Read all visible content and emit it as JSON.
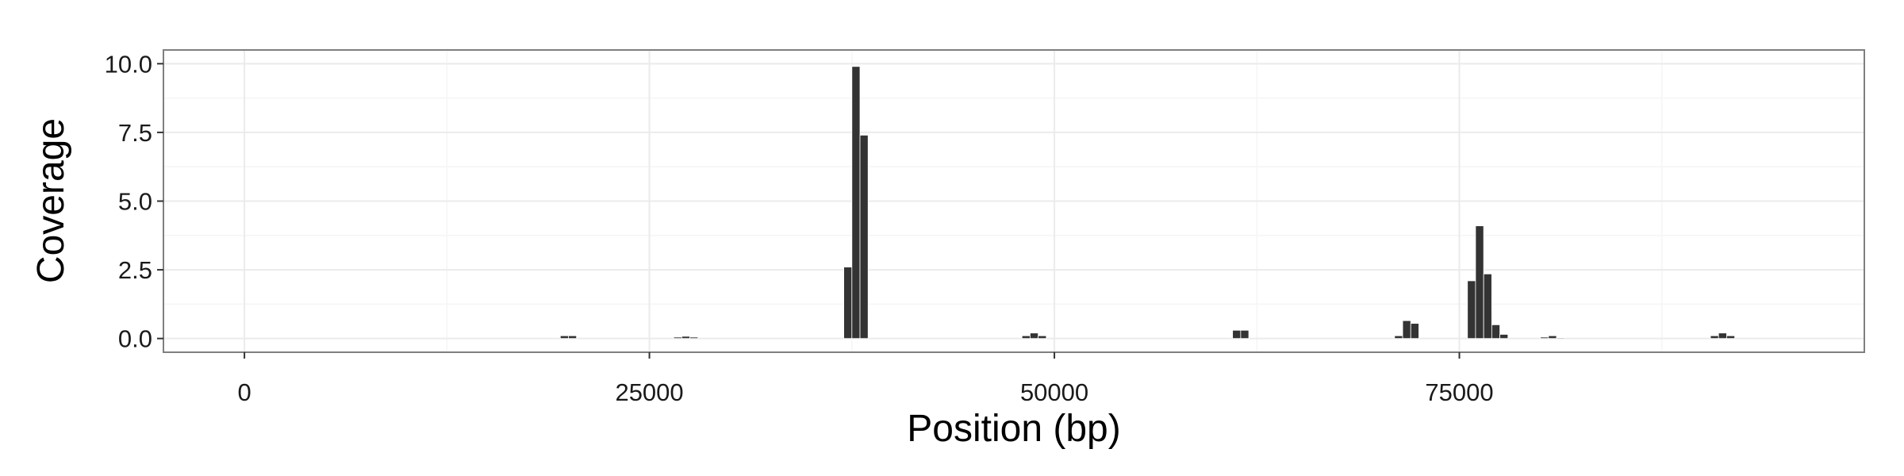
{
  "chart_data": {
    "type": "bar",
    "title": "",
    "xlabel": "Position (bp)",
    "ylabel": "Coverage",
    "xlim": [
      -5000,
      100000
    ],
    "ylim": [
      -0.5,
      10.5
    ],
    "x_ticks": [
      0,
      25000,
      50000,
      75000
    ],
    "x_tick_labels": [
      "0",
      "25000",
      "50000",
      "75000"
    ],
    "y_ticks": [
      0,
      2.5,
      5,
      7.5,
      10
    ],
    "y_tick_labels": [
      "0.0",
      "2.5",
      "5.0",
      "7.5",
      "10.0"
    ],
    "bin_width": 500,
    "grid": true,
    "legend": "none",
    "bar_color": "#333333",
    "panel_border_color": "#7f7f7f",
    "grid_color": "#ebebeb",
    "bars": [
      {
        "x": 19750,
        "y": 0.1
      },
      {
        "x": 20250,
        "y": 0.1
      },
      {
        "x": 26750,
        "y": 0.05
      },
      {
        "x": 27250,
        "y": 0.08
      },
      {
        "x": 27750,
        "y": 0.05
      },
      {
        "x": 37250,
        "y": 2.6
      },
      {
        "x": 37750,
        "y": 9.9
      },
      {
        "x": 38250,
        "y": 7.4
      },
      {
        "x": 48250,
        "y": 0.1
      },
      {
        "x": 48750,
        "y": 0.2
      },
      {
        "x": 49250,
        "y": 0.1
      },
      {
        "x": 61250,
        "y": 0.3
      },
      {
        "x": 61750,
        "y": 0.3
      },
      {
        "x": 71250,
        "y": 0.1
      },
      {
        "x": 71750,
        "y": 0.65
      },
      {
        "x": 72250,
        "y": 0.55
      },
      {
        "x": 75750,
        "y": 2.1
      },
      {
        "x": 76250,
        "y": 4.1
      },
      {
        "x": 76750,
        "y": 2.35
      },
      {
        "x": 77250,
        "y": 0.5
      },
      {
        "x": 77750,
        "y": 0.15
      },
      {
        "x": 80250,
        "y": 0.05
      },
      {
        "x": 80750,
        "y": 0.1
      },
      {
        "x": 81250,
        "y": 0.03
      },
      {
        "x": 90750,
        "y": 0.1
      },
      {
        "x": 91250,
        "y": 0.2
      },
      {
        "x": 91750,
        "y": 0.1
      }
    ]
  }
}
